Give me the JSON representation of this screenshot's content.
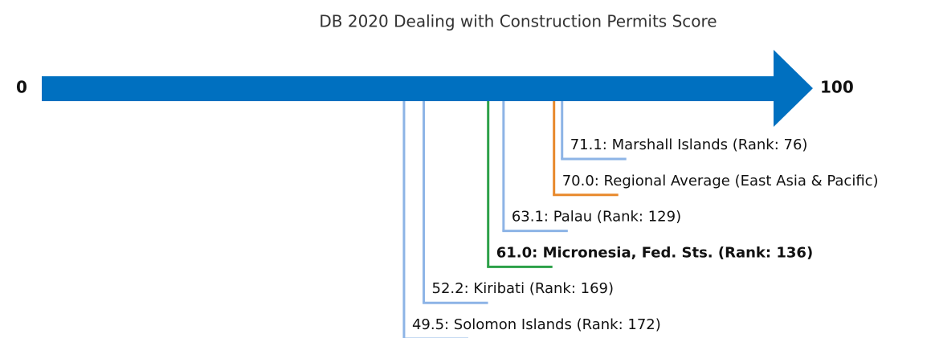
{
  "chart_data": {
    "type": "numberline",
    "title": "DB 2020 Dealing with Construction Permits Score",
    "xlim": [
      0,
      100
    ],
    "xticks": [
      0,
      100
    ],
    "axis_color": "#0070c0",
    "categories": [
      "71.1: Marshall Islands (Rank: 76)",
      "70.0: Regional Average (East Asia & Pacific)",
      "63.1: Palau (Rank: 129)",
      "61.0: Micronesia, Fed. Sts. (Rank: 136)",
      "52.2: Kiribati (Rank: 169)",
      "49.5: Solomon Islands (Rank: 172)"
    ],
    "values": [
      71.1,
      70.0,
      63.1,
      61.0,
      52.2,
      49.5
    ],
    "colors": [
      "#8db4e6",
      "#e8892c",
      "#8db4e6",
      "#2ca048",
      "#8db4e6",
      "#8db4e6"
    ],
    "highlight_index": 3
  }
}
